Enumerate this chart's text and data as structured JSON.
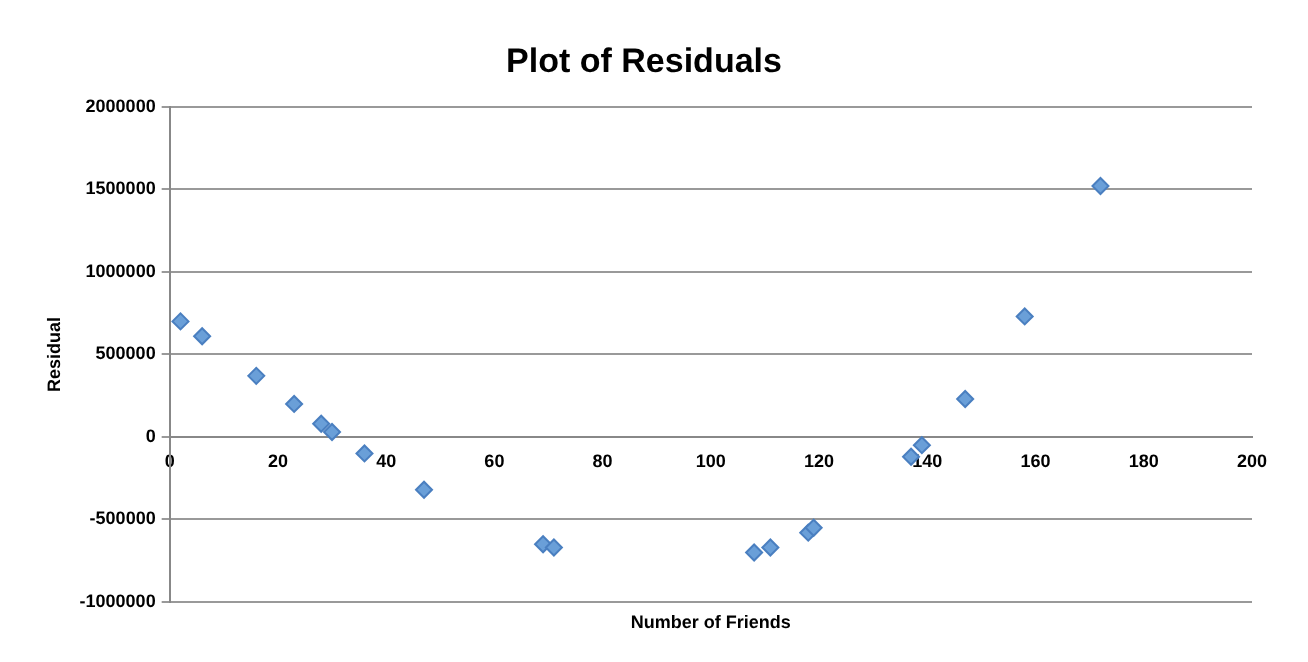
{
  "chart_data": {
    "type": "scatter",
    "title": "Plot of Residuals",
    "xlabel": "Number of Friends",
    "ylabel": "Residual",
    "x": [
      2,
      6,
      16,
      23,
      28,
      30,
      36,
      47,
      69,
      71,
      108,
      111,
      118,
      119,
      137,
      139,
      147,
      158,
      172
    ],
    "series": [
      {
        "color": "#6a9fd8",
        "values": [
          700000,
          610000,
          370000,
          200000,
          80000,
          30000,
          -100000,
          -320000,
          -650000,
          -670000,
          -700000,
          -670000,
          -580000,
          -550000,
          -120000,
          -50000,
          230000,
          730000,
          1520000
        ]
      }
    ],
    "xlim": [
      0,
      200
    ],
    "xticks": [
      0,
      20,
      40,
      60,
      80,
      100,
      120,
      140,
      160,
      180,
      200
    ],
    "ylim": [
      -1000000,
      2000000
    ],
    "yticks": [
      -1000000,
      -500000,
      0,
      500000,
      1000000,
      1500000,
      2000000
    ],
    "grid": "y",
    "legend": false,
    "marker": "diamond"
  }
}
